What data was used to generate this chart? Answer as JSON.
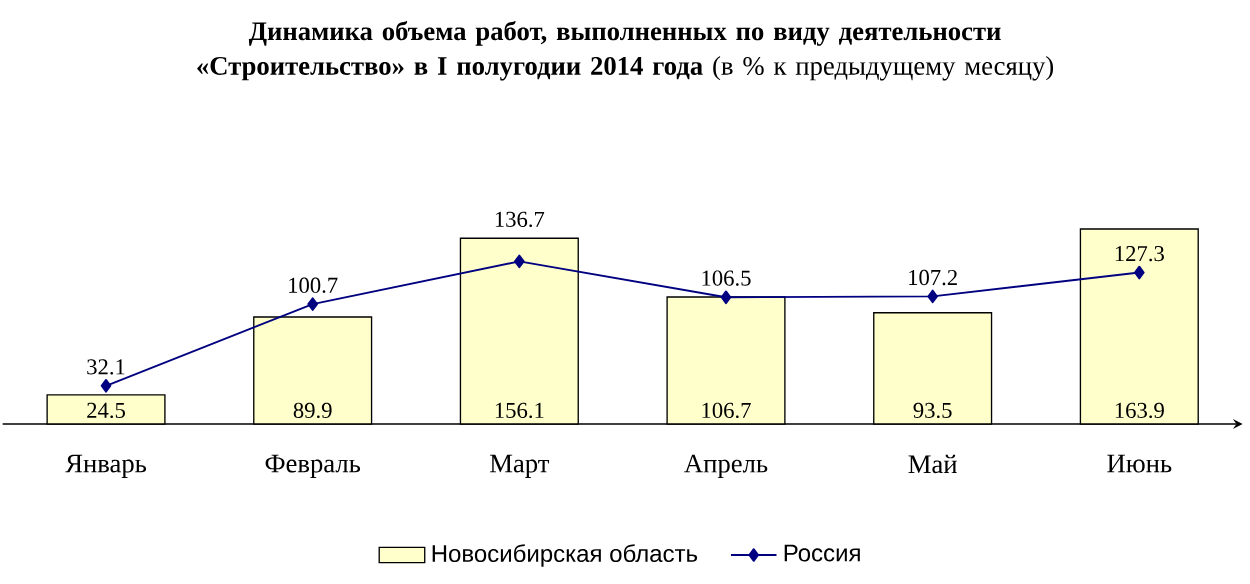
{
  "chart_data": {
    "type": "bar",
    "title": "**Динамика объема работ, выполненных по виду деятельности «Строительство» в I полугодии 2014 года** (в % к предыдущему месяцу)",
    "categories": [
      "Январь",
      "Февраль",
      "Март",
      "Апрель",
      "Май",
      "Июнь"
    ],
    "data_labels": true,
    "legend": "bottom",
    "marker": "diamond",
    "series": [
      {
        "name": "Новосибирская область",
        "color": "#ffffcc",
        "values": [
          24.5,
          89.9,
          156.1,
          106.7,
          93.5,
          163.9
        ]
      },
      {
        "name": "Россия",
        "type": "line",
        "color": "#000080",
        "values": [
          32.1,
          100.7,
          136.7,
          106.5,
          107.2,
          127.3
        ]
      }
    ]
  }
}
